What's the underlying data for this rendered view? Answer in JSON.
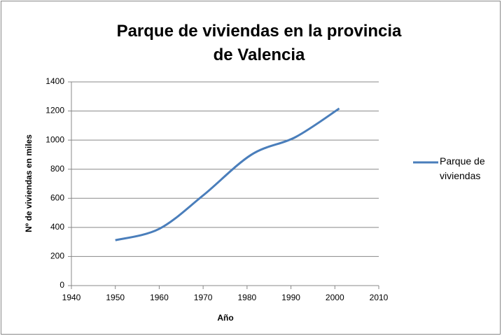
{
  "chart_data": {
    "type": "line",
    "title": "Parque de viviendas en la provincia de Valencia",
    "x_label": "Año",
    "y_label": "Nº de viviendas en miles",
    "x": [
      1950,
      1960,
      1970,
      1981,
      1991,
      2001
    ],
    "series": [
      {
        "name": "Parque de viviendas",
        "color": "#4a7ebb",
        "values": [
          312,
          390,
          620,
          900,
          1020,
          1217
        ]
      }
    ],
    "xlim": [
      1940,
      2010
    ],
    "xticks": [
      1940,
      1950,
      1960,
      1970,
      1980,
      1990,
      2000,
      2010
    ],
    "ylim": [
      0,
      1400
    ],
    "yticks": [
      0,
      200,
      400,
      600,
      800,
      1000,
      1200,
      1400
    ],
    "grid": true,
    "legend": "right",
    "smooth": true
  }
}
